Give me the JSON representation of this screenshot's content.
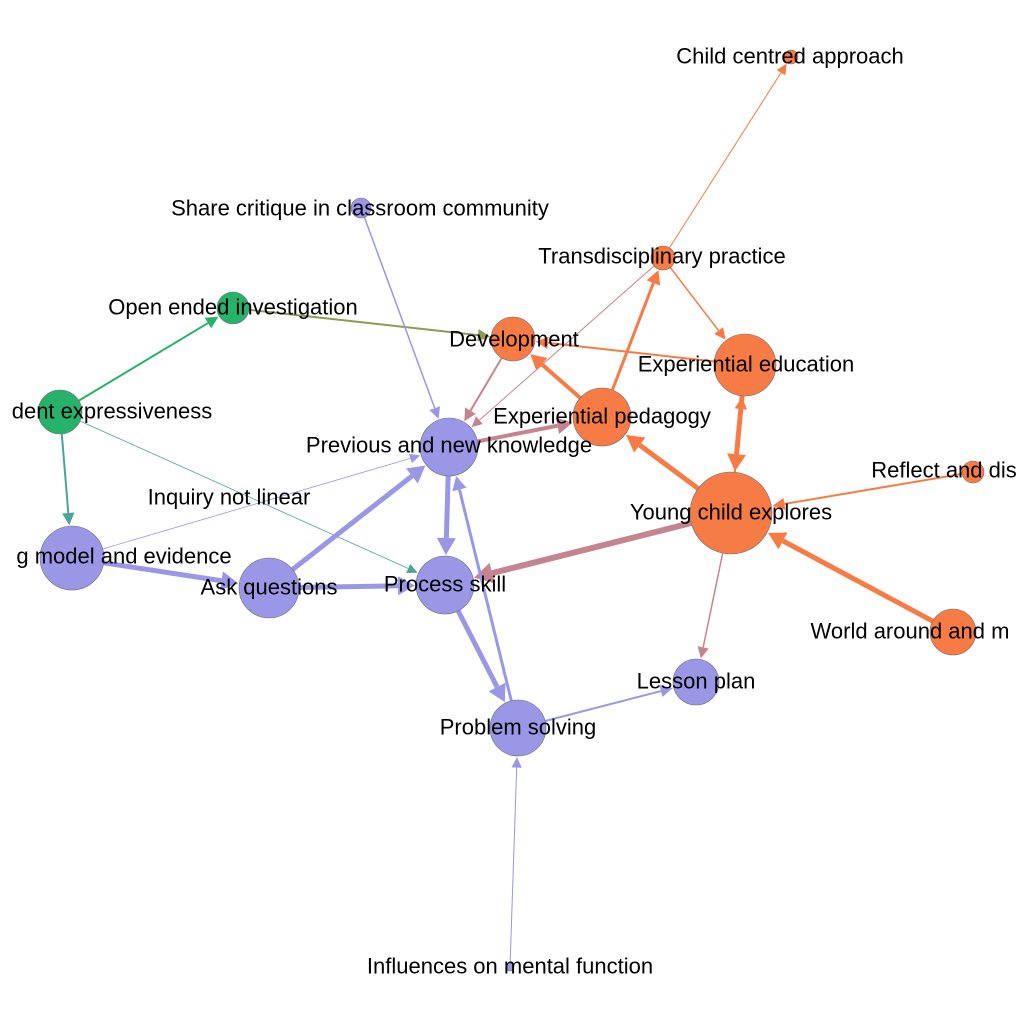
{
  "colors": {
    "purple": "#9a97e6",
    "orange": "#f77b45",
    "green": "#26b26b",
    "mauve": "#c48591",
    "olive": "#8d9a52",
    "teal": "#4ba39a"
  },
  "nodes": [
    {
      "id": "child_centred",
      "label": "Child centred approach",
      "group": "orange"
    },
    {
      "id": "share_critique",
      "label": "Share critique in classroom community",
      "group": "purple"
    },
    {
      "id": "transdisciplinary",
      "label": "Transdisciplinary practice",
      "group": "orange"
    },
    {
      "id": "open_ended",
      "label": "Open ended investigation",
      "group": "green"
    },
    {
      "id": "development",
      "label": "Development",
      "group": "orange"
    },
    {
      "id": "experiential_education",
      "label": "Experiential education",
      "group": "orange"
    },
    {
      "id": "student_expressiveness",
      "label": "dent expressiveness",
      "group": "green"
    },
    {
      "id": "experiential_pedagogy",
      "label": "Experiential pedagogy",
      "group": "orange"
    },
    {
      "id": "previous_new_knowledge",
      "label": "Previous and new knowledge",
      "group": "purple"
    },
    {
      "id": "reflect",
      "label": "Reflect and dis",
      "group": "orange"
    },
    {
      "id": "inquiry_not_linear",
      "label": "Inquiry not linear",
      "group": "purple"
    },
    {
      "id": "young_child",
      "label": "Young child explores",
      "group": "orange"
    },
    {
      "id": "model_evidence",
      "label": "g model and evidence",
      "group": "purple"
    },
    {
      "id": "ask_questions",
      "label": "Ask questions",
      "group": "purple"
    },
    {
      "id": "process_skill",
      "label": "Process skill",
      "group": "purple"
    },
    {
      "id": "world_around",
      "label": "World around and m",
      "group": "orange"
    },
    {
      "id": "lesson_plan",
      "label": "Lesson plan",
      "group": "purple"
    },
    {
      "id": "problem_solving",
      "label": "Problem solving",
      "group": "purple"
    },
    {
      "id": "influences",
      "label": "Influences on mental function",
      "group": "purple"
    }
  ],
  "edges": [
    {
      "from": "transdisciplinary",
      "to": "child_centred",
      "color": "orange",
      "weight": 1
    },
    {
      "from": "transdisciplinary",
      "to": "experiential_education",
      "color": "orange",
      "weight": 1.5
    },
    {
      "from": "transdisciplinary",
      "to": "previous_new_knowledge",
      "color": "mauve",
      "weight": 1
    },
    {
      "from": "experiential_pedagogy",
      "to": "transdisciplinary",
      "color": "orange",
      "weight": 3
    },
    {
      "from": "experiential_education",
      "to": "development",
      "color": "orange",
      "weight": 2
    },
    {
      "from": "experiential_pedagogy",
      "to": "development",
      "color": "orange",
      "weight": 4
    },
    {
      "from": "development",
      "to": "previous_new_knowledge",
      "color": "mauve",
      "weight": 2
    },
    {
      "from": "young_child",
      "to": "experiential_pedagogy",
      "color": "orange",
      "weight": 5
    },
    {
      "from": "experiential_education",
      "to": "young_child",
      "color": "orange",
      "weight": 5
    },
    {
      "from": "young_child",
      "to": "experiential_education",
      "color": "orange",
      "weight": 2
    },
    {
      "from": "reflect",
      "to": "young_child",
      "color": "orange",
      "weight": 2
    },
    {
      "from": "world_around",
      "to": "young_child",
      "color": "orange",
      "weight": 5
    },
    {
      "from": "young_child",
      "to": "process_skill",
      "color": "mauve",
      "weight": 6
    },
    {
      "from": "young_child",
      "to": "lesson_plan",
      "color": "mauve",
      "weight": 1.5
    },
    {
      "from": "previous_new_knowledge",
      "to": "experiential_pedagogy",
      "color": "mauve",
      "weight": 4
    },
    {
      "from": "student_expressiveness",
      "to": "open_ended",
      "color": "green",
      "weight": 2
    },
    {
      "from": "student_expressiveness",
      "to": "model_evidence",
      "color": "teal",
      "weight": 2
    },
    {
      "from": "student_expressiveness",
      "to": "process_skill",
      "color": "teal",
      "weight": 0.8
    },
    {
      "from": "open_ended",
      "to": "development",
      "color": "olive",
      "weight": 2
    },
    {
      "from": "share_critique",
      "to": "previous_new_knowledge",
      "color": "purple",
      "weight": 1.5
    },
    {
      "from": "model_evidence",
      "to": "ask_questions",
      "color": "purple",
      "weight": 5
    },
    {
      "from": "model_evidence",
      "to": "previous_new_knowledge",
      "color": "purple",
      "weight": 0.8
    },
    {
      "from": "ask_questions",
      "to": "previous_new_knowledge",
      "color": "purple",
      "weight": 5
    },
    {
      "from": "ask_questions",
      "to": "process_skill",
      "color": "purple",
      "weight": 5
    },
    {
      "from": "previous_new_knowledge",
      "to": "process_skill",
      "color": "purple",
      "weight": 5
    },
    {
      "from": "process_skill",
      "to": "problem_solving",
      "color": "purple",
      "weight": 5
    },
    {
      "from": "problem_solving",
      "to": "previous_new_knowledge",
      "color": "purple",
      "weight": 3
    },
    {
      "from": "problem_solving",
      "to": "lesson_plan",
      "color": "purple",
      "weight": 2
    },
    {
      "from": "influences",
      "to": "problem_solving",
      "color": "purple",
      "weight": 1
    }
  ]
}
